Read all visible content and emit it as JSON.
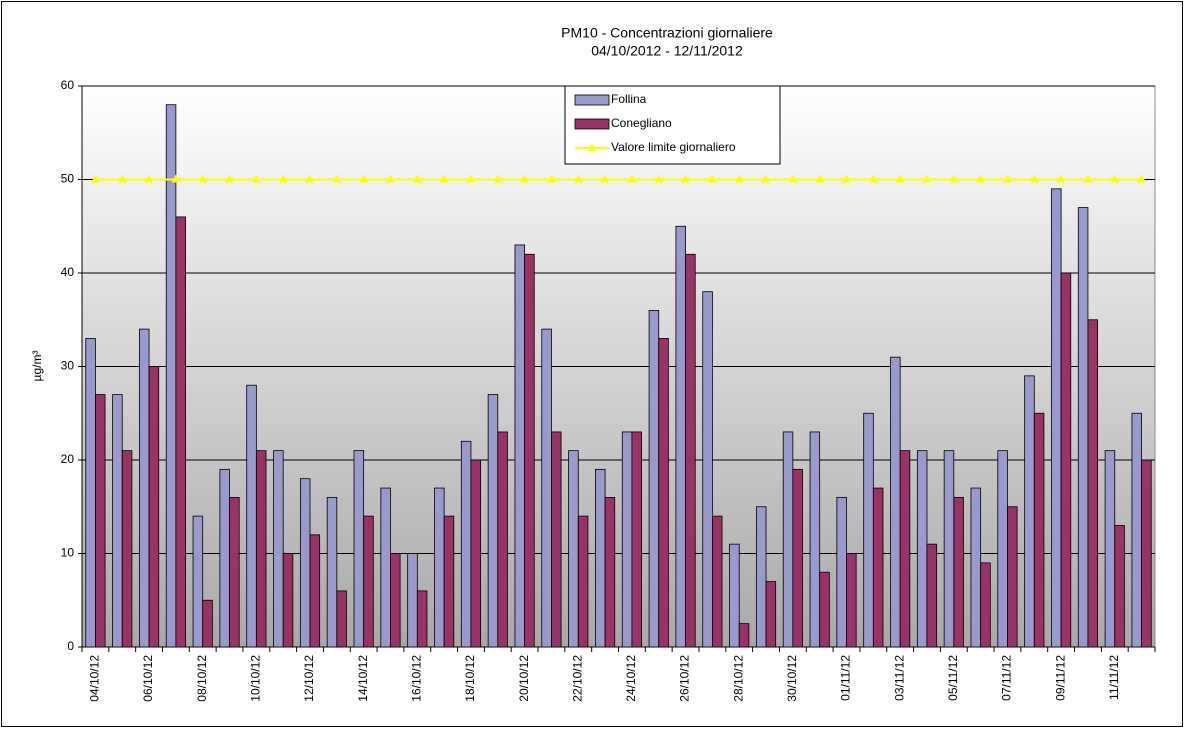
{
  "chart_data": {
    "type": "bar",
    "title": "PM10 - Concentrazioni giornaliere",
    "subtitle": "04/10/2012 - 12/11/2012",
    "y_label": "µg/m³",
    "categories": [
      "04/10/12",
      null,
      "06/10/12",
      null,
      "08/10/12",
      null,
      "10/10/12",
      null,
      "12/10/12",
      null,
      "14/10/12",
      null,
      "16/10/12",
      null,
      "18/10/12",
      null,
      "20/10/12",
      null,
      "22/10/12",
      null,
      "24/10/12",
      null,
      "26/10/12",
      null,
      "28/10/12",
      null,
      "30/10/12",
      null,
      "01/11/12",
      null,
      "03/11/12",
      null,
      "05/11/12",
      null,
      "07/11/12",
      null,
      "09/11/12",
      null,
      "11/11/12",
      null
    ],
    "series": [
      {
        "name": "Follina",
        "color": "#9999cc",
        "values": [
          33,
          27,
          34,
          58,
          14,
          19,
          28,
          21,
          18,
          16,
          21,
          17,
          10,
          17,
          22,
          27,
          43,
          34,
          21,
          19,
          23,
          36,
          45,
          38,
          11,
          15,
          23,
          23,
          16,
          25,
          31,
          21,
          21,
          17,
          21,
          29,
          49,
          47,
          21,
          25
        ]
      },
      {
        "name": "Conegliano",
        "color": "#993366",
        "values": [
          27,
          21,
          30,
          46,
          5,
          16,
          21,
          10,
          12,
          6,
          14,
          10,
          6,
          14,
          20,
          23,
          42,
          23,
          14,
          16,
          23,
          33,
          42,
          14,
          2.5,
          7,
          19,
          8,
          10,
          17,
          21,
          11,
          16,
          9,
          15,
          25,
          40,
          35,
          13,
          20
        ]
      },
      {
        "name": "Valore limite giornaliero",
        "type": "line",
        "color": "#ffff00",
        "values": [
          50,
          50,
          50,
          50,
          50,
          50,
          50,
          50,
          50,
          50,
          50,
          50,
          50,
          50,
          50,
          50,
          50,
          50,
          50,
          50,
          50,
          50,
          50,
          50,
          50,
          50,
          50,
          50,
          50,
          50,
          50,
          50,
          50,
          50,
          50,
          50,
          50,
          50,
          50,
          50
        ]
      }
    ],
    "ylim": [
      0,
      60
    ],
    "yticks": [
      0,
      10,
      20,
      30,
      40,
      50,
      60
    ],
    "grid": true,
    "legend": "top"
  }
}
